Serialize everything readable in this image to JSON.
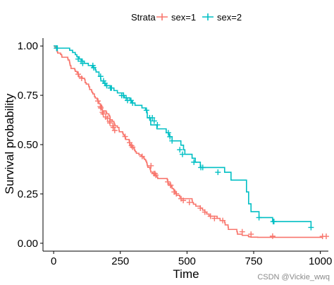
{
  "chart_data": {
    "type": "line",
    "step": true,
    "xlabel": "Time",
    "ylabel": "Survival probability",
    "xlim": [
      -40,
      1030
    ],
    "ylim": [
      -0.04,
      1.04
    ],
    "xticks": [
      0,
      250,
      500,
      750,
      1000
    ],
    "yticks": [
      0.0,
      0.25,
      0.5,
      0.75,
      1.0
    ],
    "ytick_labels": [
      "0.00",
      "0.25",
      "0.50",
      "0.75",
      "1.00"
    ],
    "grid": false,
    "legend": {
      "title": "Strata",
      "placement": "top"
    },
    "series": [
      {
        "name": "sex=1",
        "color": "#F8766D",
        "x": [
          0,
          5,
          11,
          12,
          13,
          15,
          26,
          30,
          31,
          53,
          54,
          59,
          60,
          61,
          62,
          65,
          79,
          81,
          88,
          92,
          93,
          95,
          107,
          116,
          118,
          122,
          131,
          132,
          135,
          142,
          144,
          147,
          153,
          156,
          163,
          166,
          170,
          176,
          180,
          181,
          183,
          197,
          199,
          207,
          210,
          212,
          220,
          226,
          228,
          230,
          239,
          245,
          246,
          259,
          261,
          266,
          269,
          270,
          283,
          284,
          285,
          288,
          291,
          301,
          303,
          306,
          310,
          320,
          329,
          337,
          340,
          345,
          348,
          350,
          351,
          353,
          361,
          363,
          364,
          371,
          377,
          387,
          390,
          426,
          428,
          429,
          433,
          442,
          444,
          450,
          455,
          457,
          460,
          473,
          477,
          519,
          520,
          524,
          533,
          550,
          558,
          567,
          574,
          583,
          613,
          624,
          641,
          643,
          654,
          655,
          687,
          689,
          707,
          730,
          731,
          735,
          740,
          765,
          791,
          814,
          883,
          1010
        ],
        "y": [
          1.0,
          0.993,
          0.986,
          0.979,
          0.971,
          0.964,
          0.957,
          0.95,
          0.943,
          0.936,
          0.929,
          0.921,
          0.914,
          0.907,
          0.9,
          0.886,
          0.879,
          0.871,
          0.864,
          0.857,
          0.85,
          0.843,
          0.836,
          0.829,
          0.814,
          0.807,
          0.8,
          0.793,
          0.779,
          0.771,
          0.764,
          0.757,
          0.743,
          0.736,
          0.729,
          0.721,
          0.707,
          0.7,
          0.686,
          0.678,
          0.671,
          0.664,
          0.656,
          0.648,
          0.641,
          0.626,
          0.618,
          0.61,
          0.603,
          0.595,
          0.587,
          0.572,
          0.565,
          0.557,
          0.549,
          0.541,
          0.534,
          0.526,
          0.518,
          0.51,
          0.502,
          0.495,
          0.487,
          0.479,
          0.471,
          0.464,
          0.456,
          0.448,
          0.44,
          0.432,
          0.425,
          0.417,
          0.409,
          0.401,
          0.393,
          0.385,
          0.377,
          0.369,
          0.361,
          0.353,
          0.345,
          0.336,
          0.328,
          0.32,
          0.311,
          0.303,
          0.294,
          0.286,
          0.277,
          0.269,
          0.26,
          0.251,
          0.243,
          0.234,
          0.226,
          0.217,
          0.207,
          0.198,
          0.188,
          0.178,
          0.168,
          0.158,
          0.148,
          0.137,
          0.126,
          0.115,
          0.104,
          0.093,
          0.082,
          0.07,
          0.058,
          0.046,
          0.04,
          0.036,
          0.033,
          0.032,
          0.031,
          0.03,
          0.03,
          0.03,
          0.03,
          0.03
        ],
        "censor_x": [
          92,
          105,
          166,
          175,
          177,
          183,
          186,
          195,
          202,
          210,
          211,
          222,
          224,
          229,
          268,
          285,
          292,
          296,
          332,
          365,
          376,
          380,
          383,
          428,
          438,
          439,
          452,
          460,
          478,
          486,
          509,
          550,
          567,
          588,
          603,
          634,
          707,
          740,
          821,
          1008,
          1022
        ],
        "censor_y": [
          0.857,
          0.836,
          0.721,
          0.693,
          0.686,
          0.664,
          0.656,
          0.64,
          0.633,
          0.618,
          0.61,
          0.595,
          0.587,
          0.572,
          0.541,
          0.51,
          0.495,
          0.487,
          0.44,
          0.393,
          0.353,
          0.353,
          0.345,
          0.311,
          0.294,
          0.294,
          0.26,
          0.251,
          0.226,
          0.217,
          0.207,
          0.178,
          0.158,
          0.137,
          0.126,
          0.115,
          0.058,
          0.046,
          0.036,
          0.035,
          0.035
        ]
      },
      {
        "name": "sex=2",
        "color": "#00BFC4",
        "x": [
          0,
          11,
          60,
          71,
          81,
          87,
          96,
          107,
          115,
          130,
          145,
          156,
          159,
          170,
          176,
          177,
          186,
          194,
          212,
          226,
          239,
          262,
          265,
          286,
          293,
          305,
          331,
          345,
          350,
          351,
          351,
          363,
          364,
          387,
          422,
          433,
          444,
          477,
          487,
          492,
          519,
          531,
          550,
          641,
          665,
          723,
          731,
          740,
          770,
          821,
          965
        ],
        "y": [
          1.0,
          0.989,
          0.978,
          0.967,
          0.956,
          0.945,
          0.934,
          0.923,
          0.912,
          0.901,
          0.89,
          0.879,
          0.868,
          0.846,
          0.834,
          0.823,
          0.811,
          0.799,
          0.787,
          0.774,
          0.762,
          0.749,
          0.737,
          0.724,
          0.711,
          0.699,
          0.686,
          0.674,
          0.661,
          0.648,
          0.636,
          0.62,
          0.6,
          0.58,
          0.56,
          0.54,
          0.519,
          0.497,
          0.474,
          0.451,
          0.431,
          0.411,
          0.384,
          0.36,
          0.32,
          0.26,
          0.2,
          0.16,
          0.13,
          0.11,
          0.08
        ],
        "censor_x": [
          11,
          14,
          92,
          103,
          109,
          147,
          150,
          176,
          187,
          192,
          199,
          213,
          217,
          255,
          262,
          272,
          277,
          290,
          296,
          348,
          360,
          370,
          377,
          389,
          430,
          436,
          444,
          473,
          483,
          526,
          552,
          559,
          616,
          770,
          823,
          826,
          965
        ],
        "censor_y": [
          0.989,
          0.989,
          0.934,
          0.923,
          0.912,
          0.901,
          0.89,
          0.846,
          0.823,
          0.811,
          0.799,
          0.787,
          0.787,
          0.749,
          0.749,
          0.737,
          0.724,
          0.724,
          0.711,
          0.674,
          0.636,
          0.636,
          0.62,
          0.6,
          0.56,
          0.54,
          0.519,
          0.474,
          0.451,
          0.411,
          0.384,
          0.384,
          0.36,
          0.13,
          0.11,
          0.11,
          0.08
        ]
      }
    ]
  },
  "watermark": "CSDN @Vickie_wwq"
}
